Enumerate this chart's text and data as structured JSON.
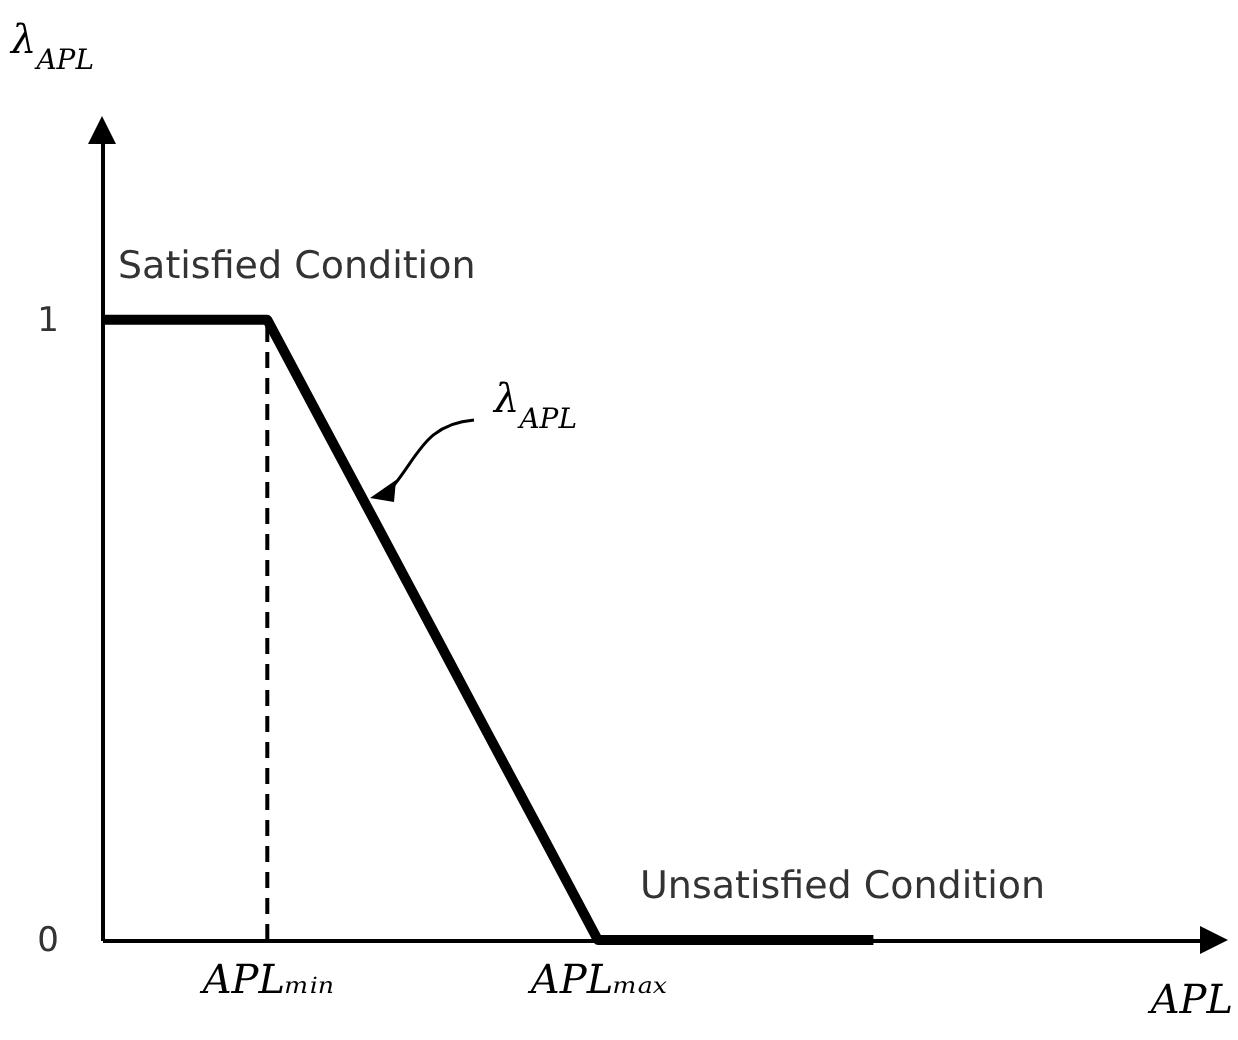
{
  "chart_data": {
    "type": "line",
    "xlabel": "APL",
    "ylabel": "λ$_{APL}$",
    "categories": [
      null,
      null,
      null,
      "APLₘᵢₙ",
      null,
      null,
      null,
      null,
      null,
      "APLₘₐₓ",
      null,
      null,
      null,
      null,
      null,
      null,
      null,
      null,
      null,
      null,
      null
    ],
    "series": [
      {
        "color": "#000000",
        "values": [
          1,
          1,
          1,
          1,
          0.833,
          0.667,
          0.5,
          0.333,
          0.167,
          0,
          0,
          0,
          0,
          0,
          0,
          null,
          null,
          null,
          null,
          null,
          null
        ]
      }
    ],
    "ylim": [
      0,
      1.29
    ],
    "yticks": [
      0,
      1
    ],
    "ref_lines": [
      {
        "axis": "x",
        "value": "APLₘᵢₙ",
        "line_style": "dashed",
        "color": "#000000"
      }
    ],
    "annotations": [
      "Satisfied Condition",
      "Unsatisfied Condition",
      "λ$_{APL}$"
    ],
    "grid": false,
    "marker": "none",
    "line_style": "solid"
  }
}
